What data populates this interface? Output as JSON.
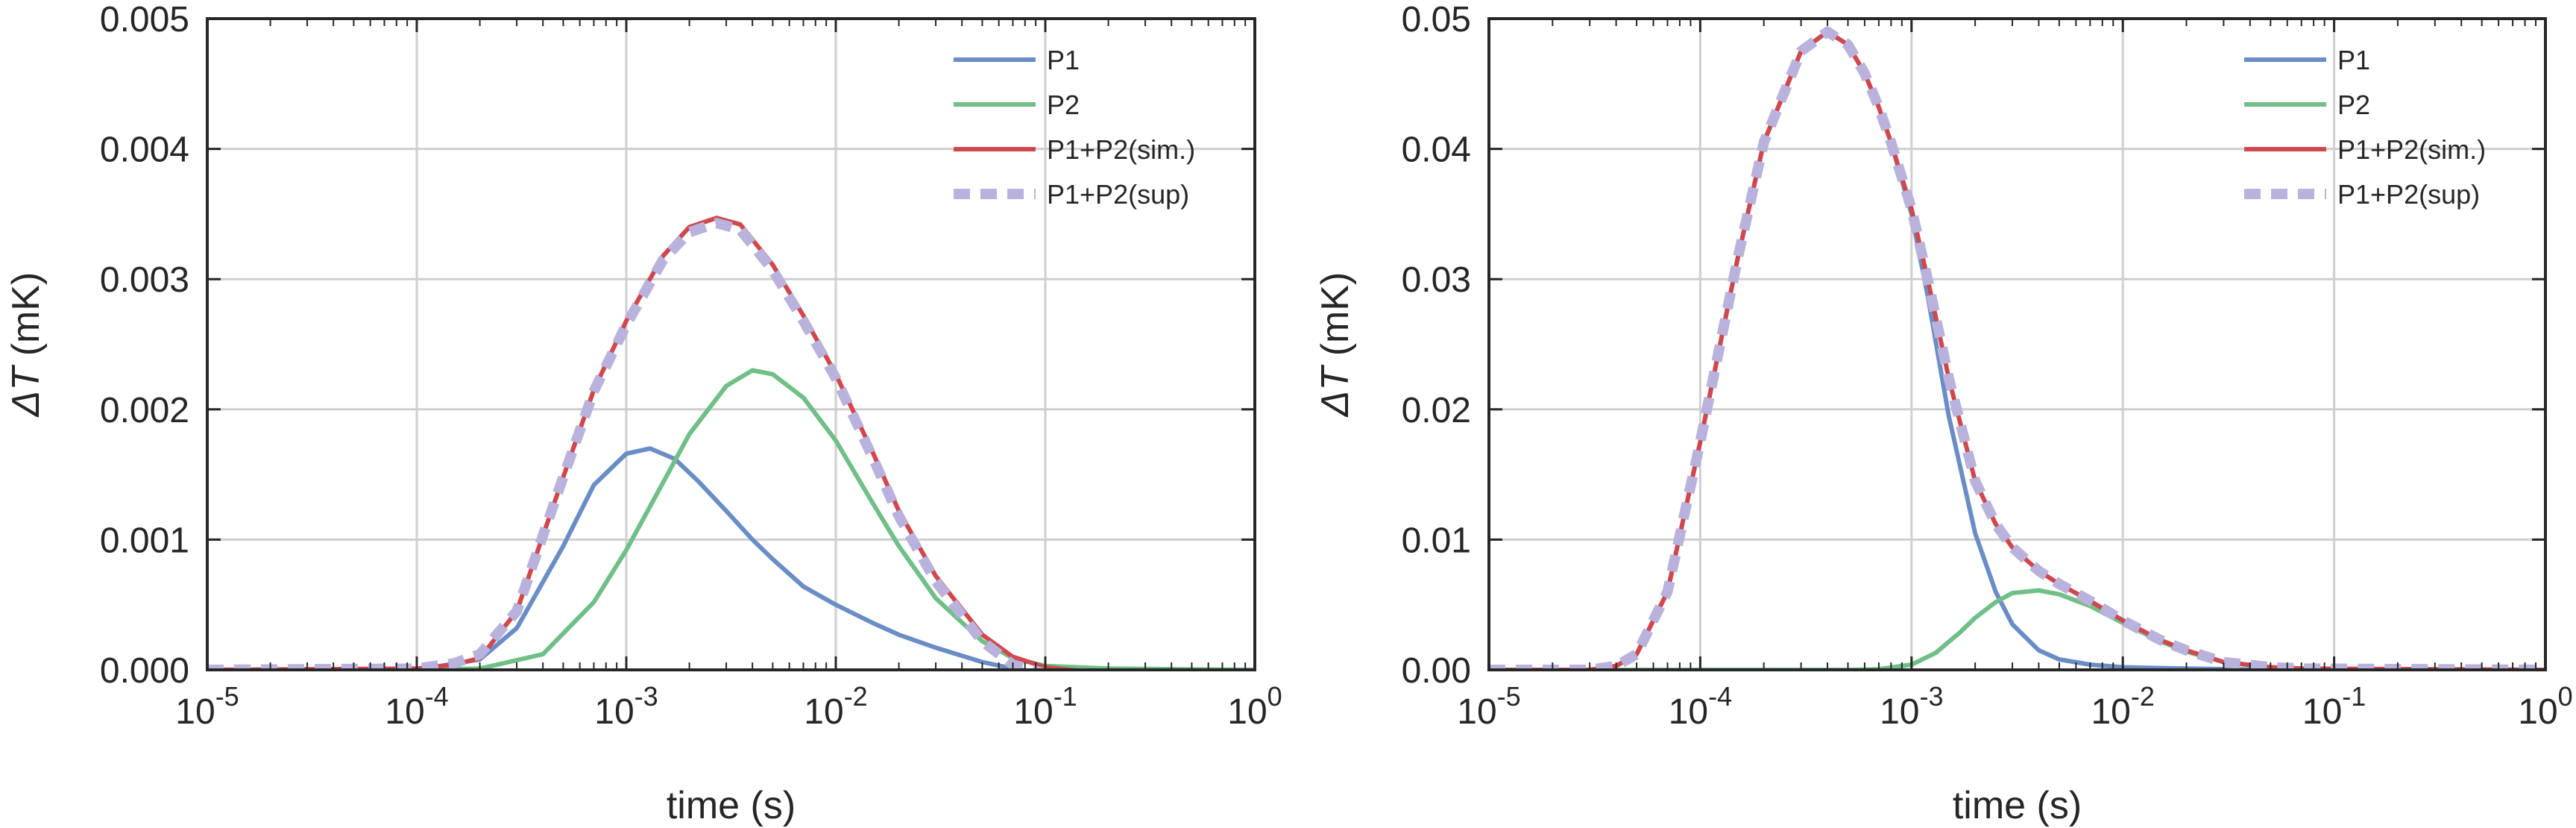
{
  "colors": {
    "P1": "#6a8dc6",
    "P2": "#6fbf86",
    "sim": "#d0474e",
    "sup": "#b9b2dc",
    "grid": "#cfcfcf",
    "axis": "#262626"
  },
  "chart_data": [
    {
      "type": "line",
      "xscale": "log",
      "xlim": [
        1e-05,
        1
      ],
      "ylim": [
        0,
        0.005
      ],
      "xlabel": "time (s)",
      "ylabel_prefix": "ΔT",
      "ylabel_suffix": " (mK)",
      "xticks": [
        {
          "value": 1e-05,
          "base": "10",
          "exp": "-5"
        },
        {
          "value": 0.0001,
          "base": "10",
          "exp": "-4"
        },
        {
          "value": 0.001,
          "base": "10",
          "exp": "-3"
        },
        {
          "value": 0.01,
          "base": "10",
          "exp": "-2"
        },
        {
          "value": 0.1,
          "base": "10",
          "exp": "-1"
        },
        {
          "value": 1,
          "base": "10",
          "exp": "0"
        }
      ],
      "yticks": [
        {
          "value": 0.0,
          "label": "0.000"
        },
        {
          "value": 0.001,
          "label": "0.001"
        },
        {
          "value": 0.002,
          "label": "0.002"
        },
        {
          "value": 0.003,
          "label": "0.003"
        },
        {
          "value": 0.004,
          "label": "0.004"
        },
        {
          "value": 0.005,
          "label": "0.005"
        }
      ],
      "legend_position": "top-right",
      "series": [
        {
          "name": "P1",
          "key": "P1",
          "style": "solid",
          "x": [
            1e-05,
            0.0001,
            0.0002,
            0.0003,
            0.0005,
            0.0007,
            0.001,
            0.0013,
            0.0017,
            0.0022,
            0.003,
            0.004,
            0.005,
            0.007,
            0.01,
            0.015,
            0.02,
            0.03,
            0.05,
            0.07,
            0.1,
            0.2,
            1
          ],
          "y": [
            0,
            0,
            8e-05,
            0.00032,
            0.00095,
            0.00142,
            0.00166,
            0.0017,
            0.00162,
            0.00145,
            0.00122,
            0.001,
            0.00085,
            0.00064,
            0.0005,
            0.00036,
            0.00027,
            0.00017,
            6e-05,
            1e-05,
            -3e-05,
            -6e-05,
            -6e-05
          ]
        },
        {
          "name": "P2",
          "key": "P2",
          "style": "solid",
          "x": [
            1e-05,
            0.0001,
            0.0002,
            0.0004,
            0.0007,
            0.001,
            0.0015,
            0.002,
            0.003,
            0.004,
            0.005,
            0.007,
            0.01,
            0.015,
            0.02,
            0.03,
            0.05,
            0.07,
            0.1,
            0.2,
            1
          ],
          "y": [
            0,
            0,
            1e-05,
            0.00012,
            0.00052,
            0.00092,
            0.00144,
            0.00181,
            0.00218,
            0.0023,
            0.00227,
            0.00209,
            0.00176,
            0.00128,
            0.00095,
            0.00055,
            0.00022,
            9e-05,
            3e-05,
            1e-05,
            0
          ]
        },
        {
          "name": "P1+P2(sim.)",
          "key": "sim",
          "style": "solid",
          "x": [
            1e-05,
            0.0001,
            0.00015,
            0.0002,
            0.0003,
            0.0005,
            0.0007,
            0.001,
            0.0015,
            0.002,
            0.0027,
            0.0035,
            0.005,
            0.007,
            0.01,
            0.015,
            0.02,
            0.03,
            0.05,
            0.07,
            0.1,
            0.15,
            0.2,
            1
          ],
          "y": [
            0,
            1e-05,
            4e-05,
            9e-05,
            0.00045,
            0.00148,
            0.00215,
            0.00268,
            0.00318,
            0.0034,
            0.00347,
            0.00342,
            0.00311,
            0.00272,
            0.00227,
            0.00167,
            0.00122,
            0.00072,
            0.00027,
            0.0001,
            2e-05,
            -1e-05,
            -1e-05,
            -1e-05
          ]
        },
        {
          "name": "P1+P2(sup)",
          "key": "sup",
          "style": "dashed",
          "x": [
            1e-05,
            0.0001,
            0.00015,
            0.0002,
            0.0003,
            0.0005,
            0.0007,
            0.001,
            0.0015,
            0.002,
            0.0027,
            0.0035,
            0.005,
            0.007,
            0.01,
            0.015,
            0.02,
            0.03,
            0.05,
            0.07,
            0.1,
            0.15,
            0.2,
            1
          ],
          "y": [
            0,
            1e-05,
            5e-05,
            0.00012,
            0.00045,
            0.00148,
            0.00214,
            0.00265,
            0.00315,
            0.00336,
            0.00343,
            0.00338,
            0.00307,
            0.00268,
            0.00224,
            0.00163,
            0.00118,
            0.00068,
            0.00022,
            4e-05,
            -3e-05,
            -7e-05,
            -8e-05,
            -7e-05
          ]
        }
      ]
    },
    {
      "type": "line",
      "xscale": "log",
      "xlim": [
        1e-05,
        1
      ],
      "ylim": [
        0,
        0.05
      ],
      "xlabel": "time (s)",
      "ylabel_prefix": "ΔT",
      "ylabel_suffix": " (mK)",
      "xticks": [
        {
          "value": 1e-05,
          "base": "10",
          "exp": "-5"
        },
        {
          "value": 0.0001,
          "base": "10",
          "exp": "-4"
        },
        {
          "value": 0.001,
          "base": "10",
          "exp": "-3"
        },
        {
          "value": 0.01,
          "base": "10",
          "exp": "-2"
        },
        {
          "value": 0.1,
          "base": "10",
          "exp": "-1"
        },
        {
          "value": 1,
          "base": "10",
          "exp": "0"
        }
      ],
      "yticks": [
        {
          "value": 0.0,
          "label": "0.00"
        },
        {
          "value": 0.01,
          "label": "0.01"
        },
        {
          "value": 0.02,
          "label": "0.02"
        },
        {
          "value": 0.03,
          "label": "0.03"
        },
        {
          "value": 0.04,
          "label": "0.04"
        },
        {
          "value": 0.05,
          "label": "0.05"
        }
      ],
      "legend_position": "top-right",
      "series": [
        {
          "name": "P1",
          "key": "P1",
          "style": "solid",
          "x": [
            1e-05,
            3e-05,
            4e-05,
            5e-05,
            7e-05,
            0.0001,
            0.00015,
            0.0002,
            0.0003,
            0.0004,
            0.0005,
            0.0006,
            0.0007,
            0.0008,
            0.001,
            0.0012,
            0.0015,
            0.002,
            0.0025,
            0.003,
            0.004,
            0.005,
            0.007,
            0.01,
            0.02,
            0.05,
            1
          ],
          "y": [
            0,
            0,
            0.0003,
            0.0012,
            0.006,
            0.0175,
            0.0315,
            0.0405,
            0.0475,
            0.049,
            0.048,
            0.0458,
            0.0432,
            0.0405,
            0.035,
            0.0285,
            0.0195,
            0.0105,
            0.006,
            0.0035,
            0.0015,
            0.0008,
            0.0004,
            0.0002,
            0.0001,
            0,
            0
          ]
        },
        {
          "name": "P2",
          "key": "P2",
          "style": "solid",
          "x": [
            1e-05,
            0.0005,
            0.0007,
            0.001,
            0.0013,
            0.0017,
            0.002,
            0.0025,
            0.003,
            0.004,
            0.005,
            0.007,
            0.01,
            0.015,
            0.02,
            0.03,
            0.05,
            0.07,
            0.1,
            1
          ],
          "y": [
            0,
            0,
            5e-05,
            0.0004,
            0.0013,
            0.0029,
            0.004,
            0.0052,
            0.0059,
            0.0061,
            0.0058,
            0.0049,
            0.0036,
            0.0022,
            0.0014,
            0.0006,
            0.0002,
            0.0001,
            0,
            0
          ]
        },
        {
          "name": "P1+P2(sim.)",
          "key": "sim",
          "style": "solid",
          "x": [
            1e-05,
            3e-05,
            4e-05,
            5e-05,
            7e-05,
            0.0001,
            0.00015,
            0.0002,
            0.0003,
            0.0004,
            0.0005,
            0.0006,
            0.0007,
            0.0008,
            0.001,
            0.0012,
            0.0015,
            0.002,
            0.0025,
            0.003,
            0.004,
            0.005,
            0.007,
            0.01,
            0.015,
            0.02,
            0.03,
            0.05,
            0.07,
            1
          ],
          "y": [
            0,
            0,
            0.0003,
            0.0012,
            0.006,
            0.0175,
            0.0315,
            0.0405,
            0.0475,
            0.049,
            0.048,
            0.0458,
            0.0432,
            0.0405,
            0.0354,
            0.0298,
            0.0224,
            0.0145,
            0.0112,
            0.0094,
            0.0076,
            0.0066,
            0.0053,
            0.0038,
            0.0023,
            0.0015,
            0.0006,
            0.0002,
            0.0001,
            0
          ]
        },
        {
          "name": "P1+P2(sup)",
          "key": "sup",
          "style": "dashed",
          "x": [
            1e-05,
            3e-05,
            4e-05,
            5e-05,
            7e-05,
            0.0001,
            0.00015,
            0.0002,
            0.0003,
            0.0004,
            0.0005,
            0.0006,
            0.0007,
            0.0008,
            0.001,
            0.0012,
            0.0015,
            0.002,
            0.0025,
            0.003,
            0.004,
            0.005,
            0.007,
            0.01,
            0.015,
            0.02,
            0.03,
            0.05,
            0.07,
            1
          ],
          "y": [
            0,
            0,
            0.0003,
            0.0012,
            0.006,
            0.0175,
            0.0315,
            0.0405,
            0.0475,
            0.049,
            0.048,
            0.0458,
            0.0432,
            0.0405,
            0.0354,
            0.0298,
            0.0224,
            0.0145,
            0.0112,
            0.0094,
            0.0076,
            0.0066,
            0.0053,
            0.0038,
            0.0023,
            0.0015,
            0.0006,
            0.0002,
            0.0001,
            0
          ]
        }
      ]
    }
  ]
}
